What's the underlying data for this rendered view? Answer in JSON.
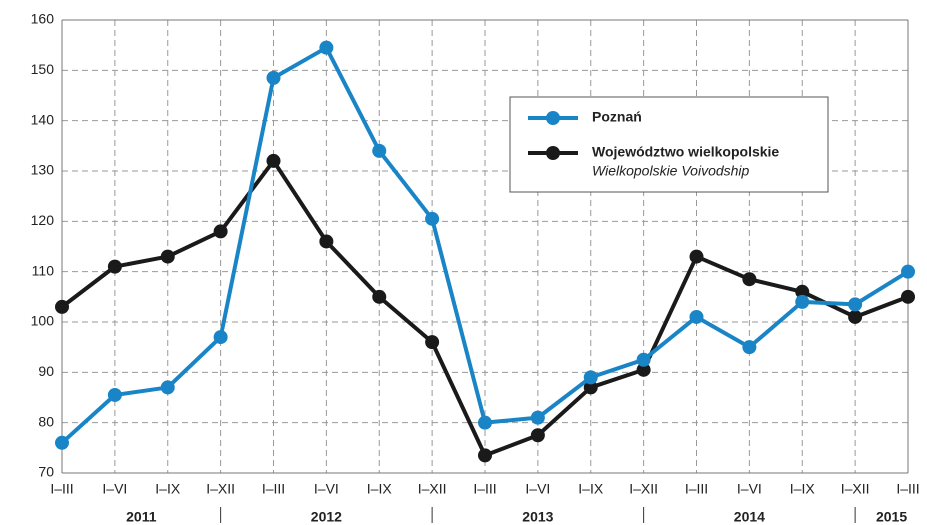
{
  "chart_data": {
    "type": "line",
    "categories": [
      "I–III",
      "I–VI",
      "I–IX",
      "I–XII",
      "I–III",
      "I–VI",
      "I–IX",
      "I–XII",
      "I–III",
      "I–VI",
      "I–IX",
      "I–XII",
      "I–III",
      "I–VI",
      "I–IX",
      "I–XII",
      "I–III"
    ],
    "years": [
      "2011",
      "2012",
      "2013",
      "2014",
      "2015"
    ],
    "series": [
      {
        "name": "Poznań",
        "color": "#1a85c6",
        "values": [
          76,
          85.5,
          87,
          97,
          148.5,
          154.5,
          134,
          120.5,
          80,
          81,
          89,
          92.5,
          101,
          95,
          104,
          103.5,
          110
        ]
      },
      {
        "name": "Województwo wielkopolskie",
        "name_en": "Wielkopolskie Voivodship",
        "color": "#1a1a1a",
        "values": [
          103,
          111,
          113,
          118,
          132,
          116,
          105,
          96,
          73.5,
          77.5,
          87,
          90.5,
          113,
          108.5,
          106,
          101,
          105
        ]
      }
    ],
    "ylim": [
      70,
      160
    ],
    "yticks": [
      70,
      80,
      90,
      100,
      110,
      120,
      130,
      140,
      150,
      160
    ],
    "grid": true
  }
}
